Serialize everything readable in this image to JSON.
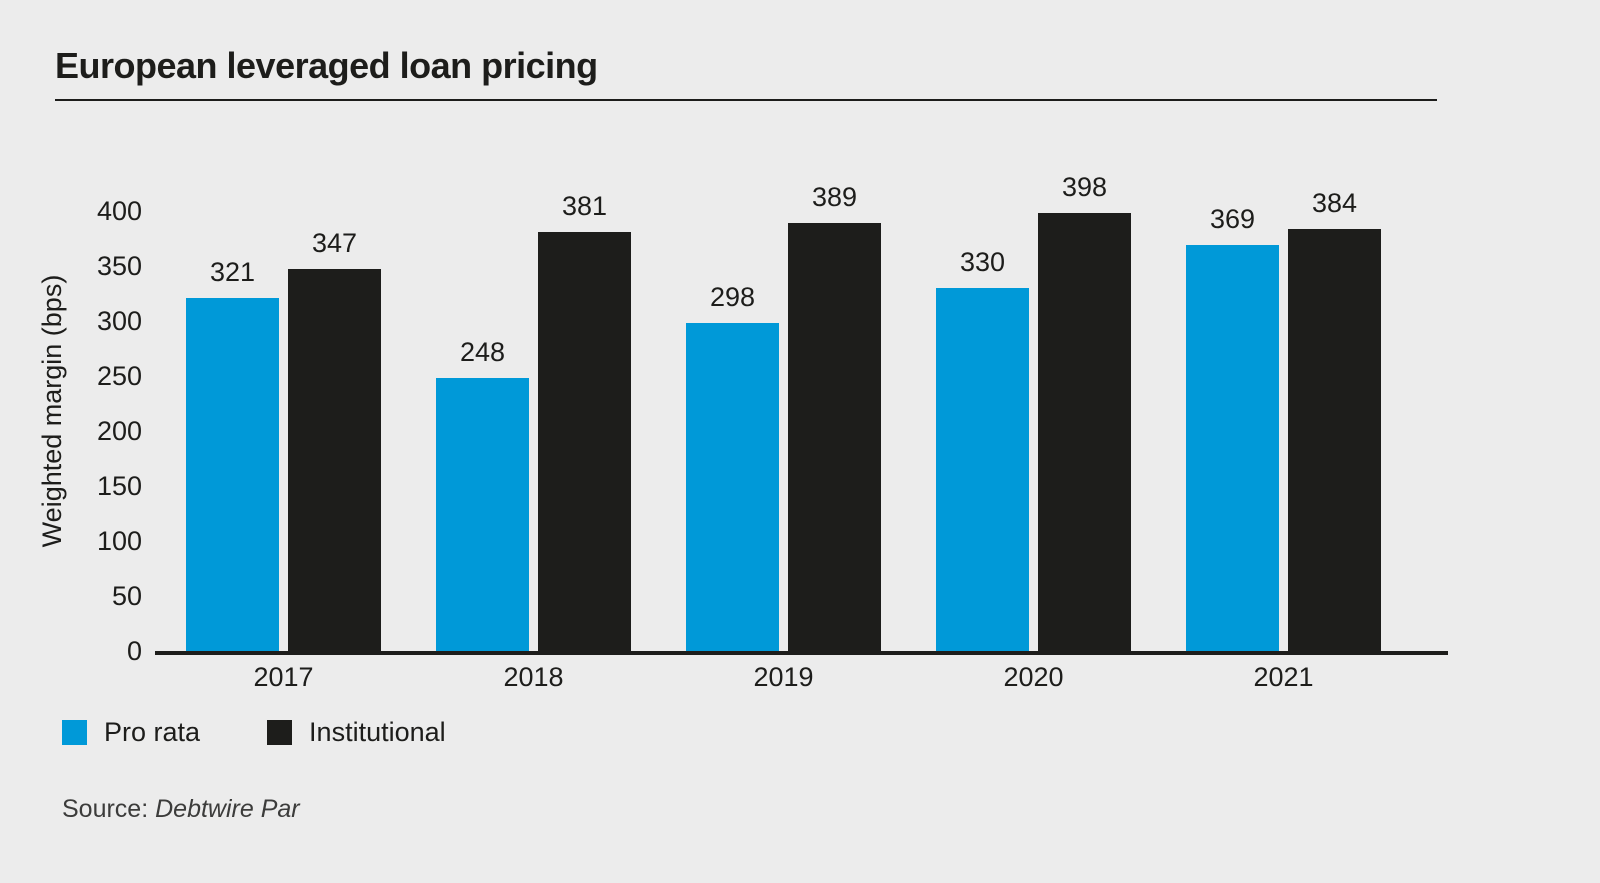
{
  "header": {
    "title": "European leveraged loan pricing"
  },
  "chart_data": {
    "type": "bar",
    "title": "European leveraged loan pricing",
    "categories": [
      "2017",
      "2018",
      "2019",
      "2020",
      "2021"
    ],
    "series": [
      {
        "name": "Pro rata",
        "color": "#0099d8",
        "values": [
          321,
          248,
          298,
          330,
          369
        ]
      },
      {
        "name": "Institutional",
        "color": "#1d1d1b",
        "values": [
          347,
          381,
          389,
          398,
          384
        ]
      }
    ],
    "xlabel": "",
    "ylabel": "Weighted margin (bps)",
    "yticks": [
      0,
      50,
      100,
      150,
      200,
      250,
      300,
      350,
      400
    ],
    "ylim": [
      0,
      440
    ],
    "grid": false,
    "legend_position": "bottom",
    "value_labels": true
  },
  "source": {
    "prefix": "Source: ",
    "name": "Debtwire Par"
  },
  "colors": {
    "background": "#ececec",
    "bar_blue": "#0099d8",
    "bar_black": "#1d1d1b",
    "text": "#1d1d1b",
    "source_text": "#3c3c3b"
  }
}
